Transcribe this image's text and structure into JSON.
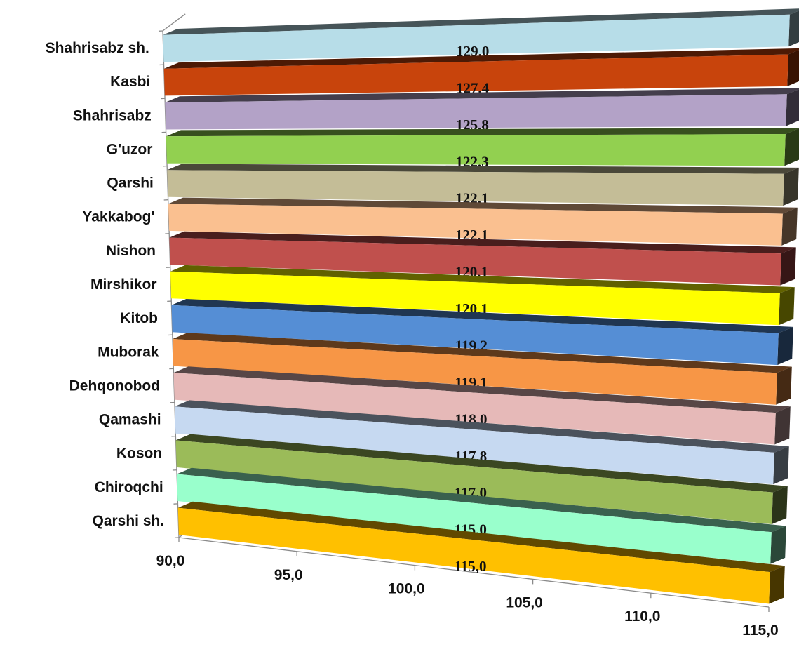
{
  "chart_data": {
    "type": "bar",
    "orientation": "horizontal",
    "style": "3d",
    "title": "",
    "xlabel": "",
    "ylabel": "",
    "categories": [
      "Shahrisabz sh.",
      "Kasbi",
      "Shahrisabz",
      "G'uzor",
      "Qarshi",
      "Yakkabog'",
      "Nishon",
      "Mirshikor",
      "Kitob",
      "Muborak",
      "Dehqonobod",
      "Qamashi",
      "Koson",
      "Chiroqchi",
      "Qarshi sh."
    ],
    "values": [
      129.0,
      127.4,
      125.8,
      122.3,
      122.1,
      122.1,
      120.1,
      120.1,
      119.2,
      119.1,
      118.0,
      117.8,
      117.0,
      115.0,
      115.0
    ],
    "data_labels": [
      "129,0",
      "127,4",
      "125,8",
      "122,3",
      "122,1",
      "122,1",
      "120,1",
      "120,1",
      "119,2",
      "119,1",
      "118,0",
      "117,8",
      "117,0",
      "115,0",
      "115,0"
    ],
    "colors": [
      "#b7dde8",
      "#c8440c",
      "#b3a2c7",
      "#92d050",
      "#c4bd97",
      "#fac090",
      "#c0504d",
      "#ffff00",
      "#558ed5",
      "#f79646",
      "#e6b9b8",
      "#c6d9f1",
      "#9bbb59",
      "#99ffcc",
      "#ffc000"
    ],
    "xlim": [
      90,
      115
    ],
    "xticks": [
      90,
      95,
      100,
      105,
      110,
      115
    ],
    "xtick_labels": [
      "90,0",
      "95,0",
      "100,0",
      "105,0",
      "110,0",
      "115,0"
    ],
    "grid": false,
    "legend": "none"
  }
}
